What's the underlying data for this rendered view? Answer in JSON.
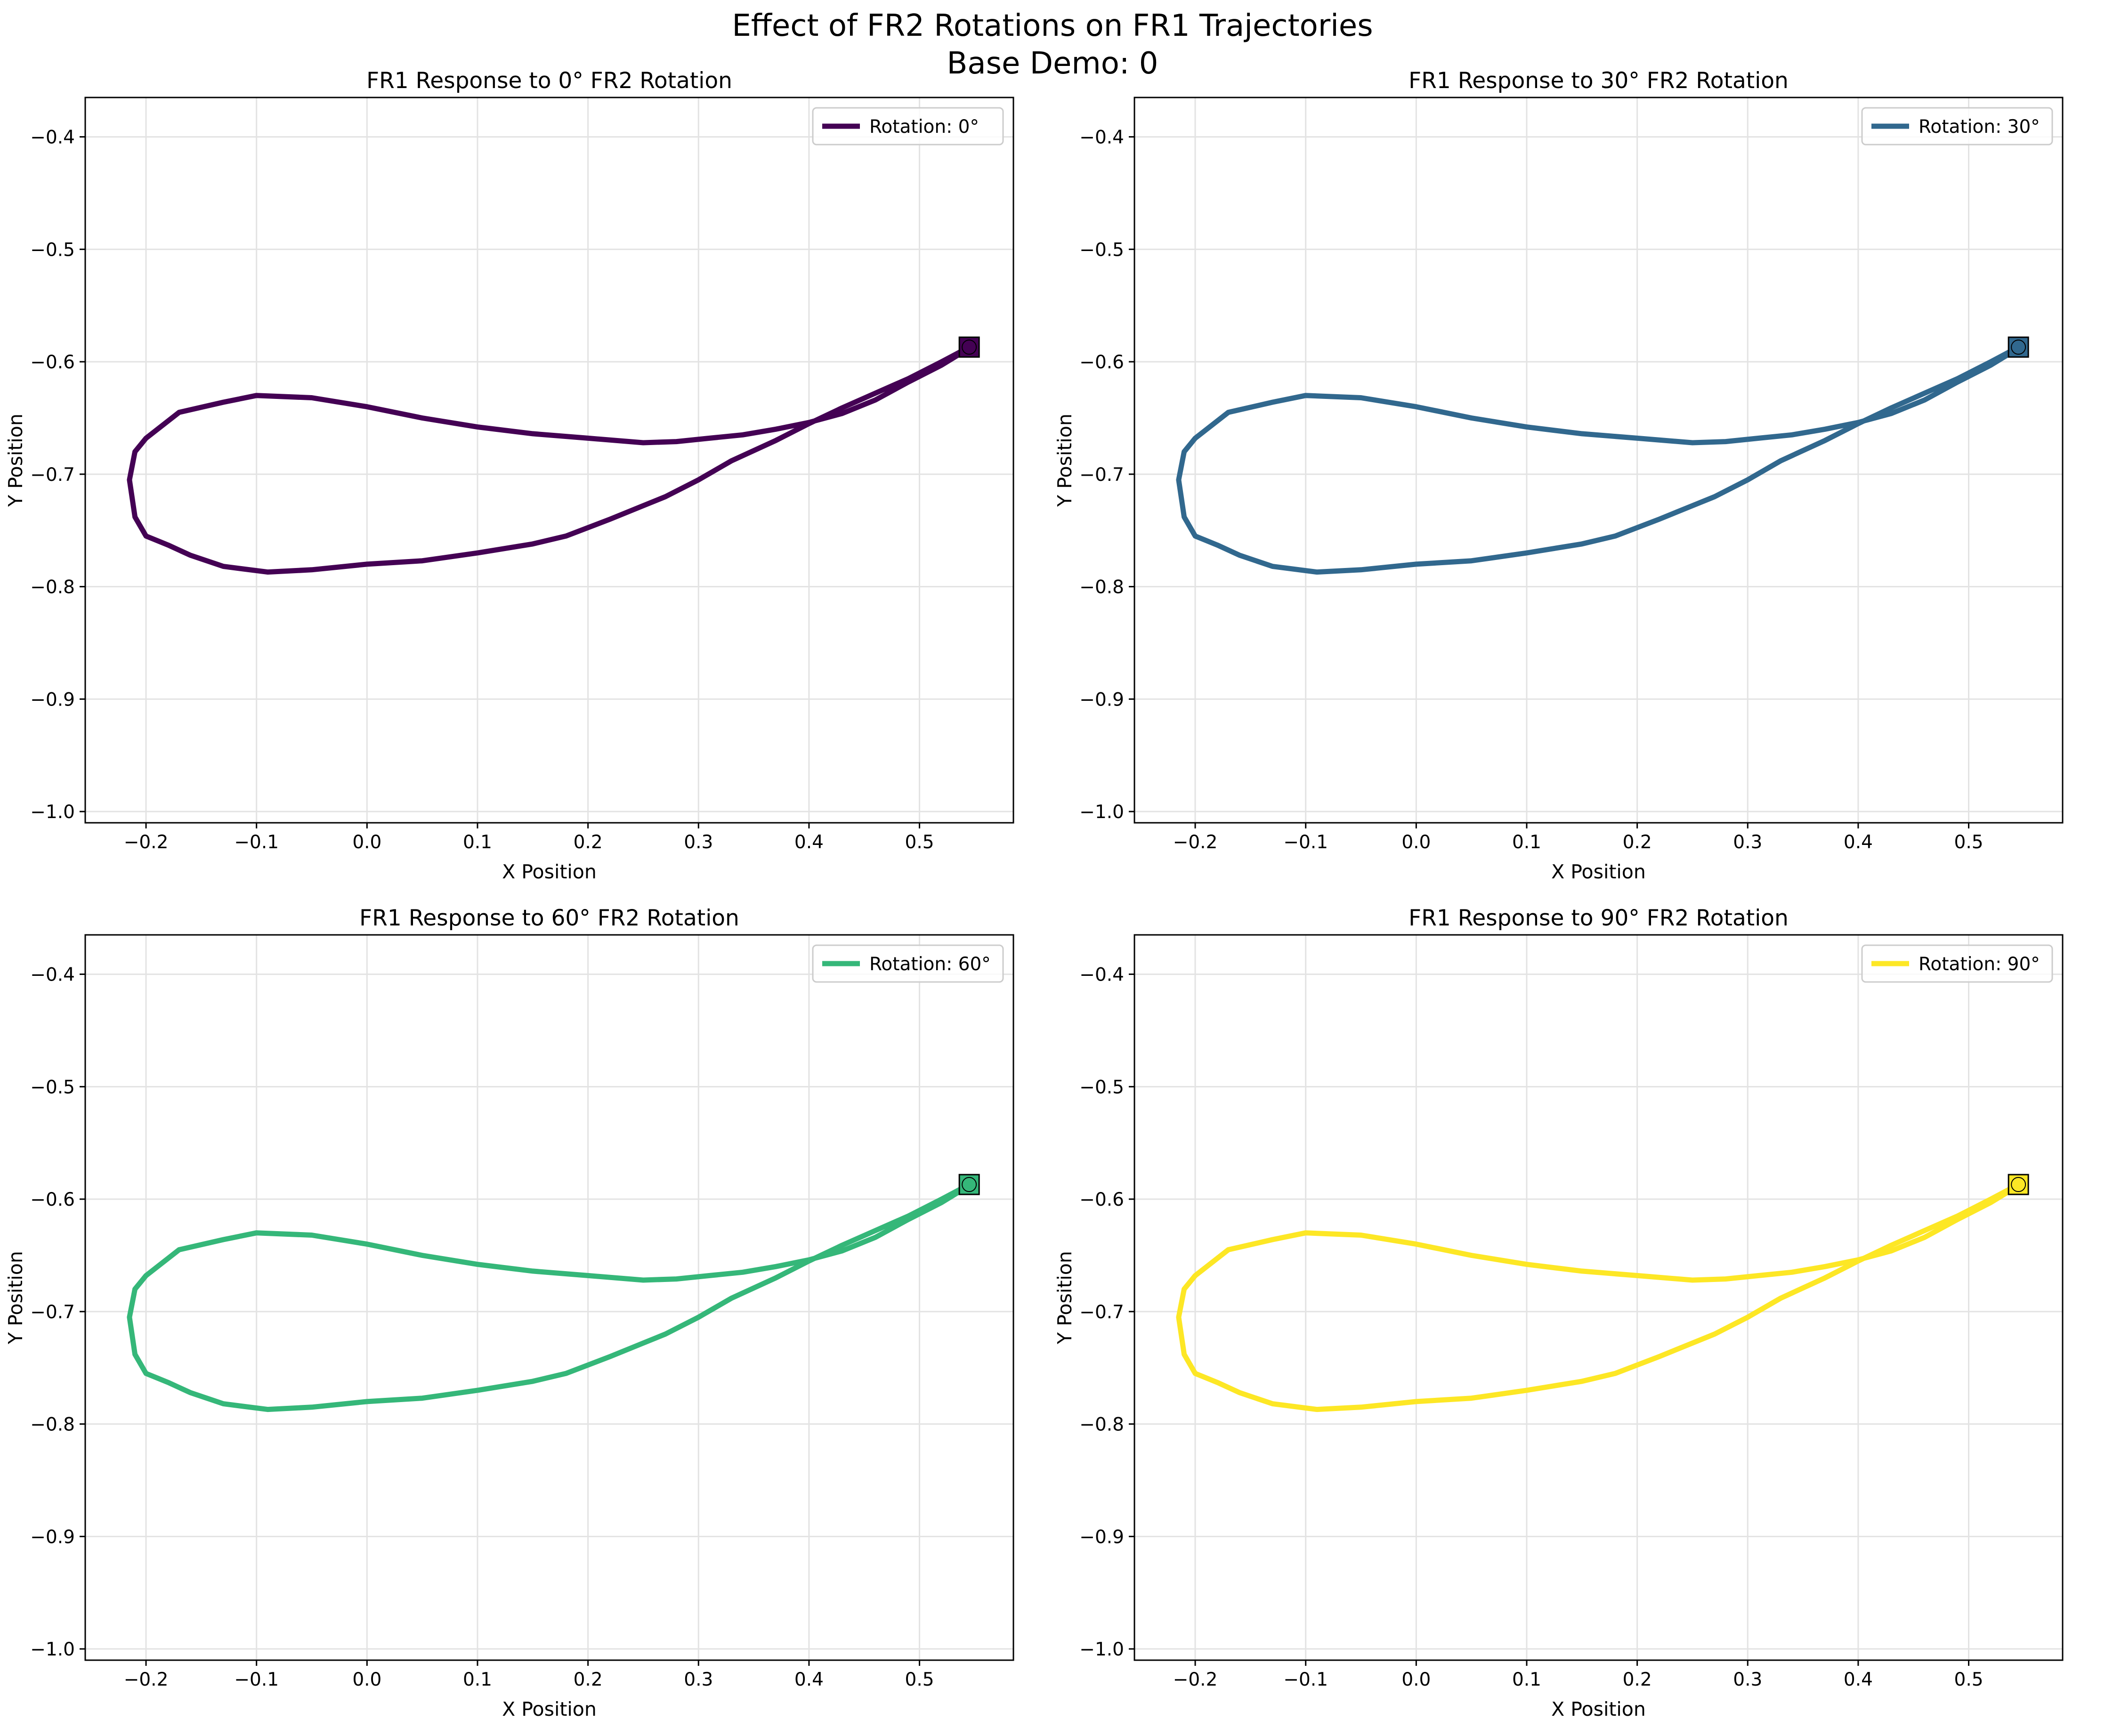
{
  "figure": {
    "title_line1": "Effect of FR2 Rotations on FR1 Trajectories",
    "title_line2": "Base Demo: 0"
  },
  "chart_data": [
    {
      "type": "line",
      "title": "FR1 Response to 0° FR2 Rotation",
      "xlabel": "X Position",
      "ylabel": "Y Position",
      "xlim": [
        -0.255,
        0.585
      ],
      "ylim": [
        -1.01,
        -0.365
      ],
      "xticks": [
        -0.2,
        -0.1,
        0.0,
        0.1,
        0.2,
        0.3,
        0.4,
        0.5
      ],
      "xtick_labels": [
        "−0.2",
        "−0.1",
        "0.0",
        "0.1",
        "0.2",
        "0.3",
        "0.4",
        "0.5"
      ],
      "yticks": [
        -0.4,
        -0.5,
        -0.6,
        -0.7,
        -0.8,
        -0.9,
        -1.0
      ],
      "ytick_labels": [
        "−0.4",
        "−0.5",
        "−0.6",
        "−0.7",
        "−0.8",
        "−0.9",
        "−1.0"
      ],
      "grid": true,
      "legend_position": "top-right",
      "series": [
        {
          "name": "Rotation: 0°",
          "color": "#440154"
        }
      ]
    },
    {
      "type": "line",
      "title": "FR1 Response to 30° FR2 Rotation",
      "xlabel": "X Position",
      "ylabel": "Y Position",
      "xlim": [
        -0.255,
        0.585
      ],
      "ylim": [
        -1.01,
        -0.365
      ],
      "xticks": [
        -0.2,
        -0.1,
        0.0,
        0.1,
        0.2,
        0.3,
        0.4,
        0.5
      ],
      "xtick_labels": [
        "−0.2",
        "−0.1",
        "0.0",
        "0.1",
        "0.2",
        "0.3",
        "0.4",
        "0.5"
      ],
      "yticks": [
        -0.4,
        -0.5,
        -0.6,
        -0.7,
        -0.8,
        -0.9,
        -1.0
      ],
      "ytick_labels": [
        "−0.4",
        "−0.5",
        "−0.6",
        "−0.7",
        "−0.8",
        "−0.9",
        "−1.0"
      ],
      "grid": true,
      "legend_position": "top-right",
      "series": [
        {
          "name": "Rotation: 30°",
          "color": "#31688e"
        }
      ]
    },
    {
      "type": "line",
      "title": "FR1 Response to 60° FR2 Rotation",
      "xlabel": "X Position",
      "ylabel": "Y Position",
      "xlim": [
        -0.255,
        0.585
      ],
      "ylim": [
        -1.01,
        -0.365
      ],
      "xticks": [
        -0.2,
        -0.1,
        0.0,
        0.1,
        0.2,
        0.3,
        0.4,
        0.5
      ],
      "xtick_labels": [
        "−0.2",
        "−0.1",
        "0.0",
        "0.1",
        "0.2",
        "0.3",
        "0.4",
        "0.5"
      ],
      "yticks": [
        -0.4,
        -0.5,
        -0.6,
        -0.7,
        -0.8,
        -0.9,
        -1.0
      ],
      "ytick_labels": [
        "−0.4",
        "−0.5",
        "−0.6",
        "−0.7",
        "−0.8",
        "−0.9",
        "−1.0"
      ],
      "grid": true,
      "legend_position": "top-right",
      "series": [
        {
          "name": "Rotation: 60°",
          "color": "#35b779"
        }
      ]
    },
    {
      "type": "line",
      "title": "FR1 Response to 90° FR2 Rotation",
      "xlabel": "X Position",
      "ylabel": "Y Position",
      "xlim": [
        -0.255,
        0.585
      ],
      "ylim": [
        -1.01,
        -0.365
      ],
      "xticks": [
        -0.2,
        -0.1,
        0.0,
        0.1,
        0.2,
        0.3,
        0.4,
        0.5
      ],
      "xtick_labels": [
        "−0.2",
        "−0.1",
        "0.0",
        "0.1",
        "0.2",
        "0.3",
        "0.4",
        "0.5"
      ],
      "yticks": [
        -0.4,
        -0.5,
        -0.6,
        -0.7,
        -0.8,
        -0.9,
        -1.0
      ],
      "ytick_labels": [
        "−0.4",
        "−0.5",
        "−0.6",
        "−0.7",
        "−0.8",
        "−0.9",
        "−1.0"
      ],
      "grid": true,
      "legend_position": "top-right",
      "series": [
        {
          "name": "Rotation: 90°",
          "color": "#fde725"
        }
      ]
    }
  ],
  "trajectory": {
    "x": [
      0.545,
      0.52,
      0.49,
      0.46,
      0.43,
      0.4,
      0.37,
      0.33,
      0.3,
      0.27,
      0.25,
      0.22,
      0.18,
      0.15,
      0.1,
      0.05,
      0.0,
      -0.05,
      -0.09,
      -0.13,
      -0.16,
      -0.18,
      -0.2,
      -0.21,
      -0.215,
      -0.21,
      -0.2,
      -0.17,
      -0.13,
      -0.1,
      -0.05,
      0.0,
      0.05,
      0.1,
      0.15,
      0.2,
      0.25,
      0.28,
      0.31,
      0.34,
      0.37,
      0.4,
      0.43,
      0.46,
      0.49,
      0.52,
      0.545
    ],
    "y": [
      -0.587,
      -0.6,
      -0.615,
      -0.628,
      -0.641,
      -0.655,
      -0.67,
      -0.688,
      -0.705,
      -0.72,
      -0.728,
      -0.74,
      -0.755,
      -0.762,
      -0.77,
      -0.777,
      -0.78,
      -0.785,
      -0.787,
      -0.782,
      -0.772,
      -0.763,
      -0.755,
      -0.738,
      -0.705,
      -0.68,
      -0.668,
      -0.645,
      -0.636,
      -0.63,
      -0.632,
      -0.64,
      -0.65,
      -0.658,
      -0.664,
      -0.668,
      -0.672,
      -0.671,
      -0.668,
      -0.665,
      -0.66,
      -0.654,
      -0.646,
      -0.634,
      -0.618,
      -0.603,
      -0.588
    ]
  }
}
